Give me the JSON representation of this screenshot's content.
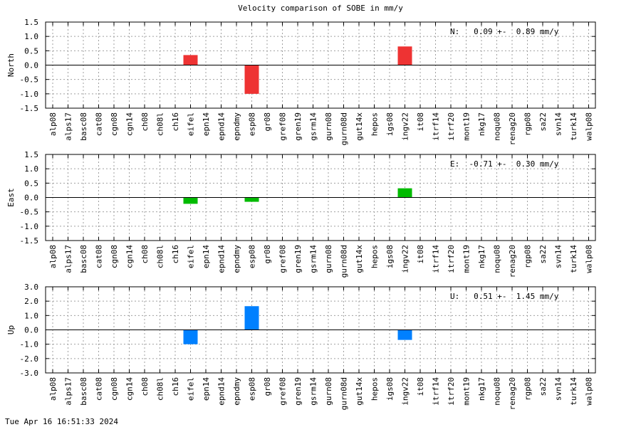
{
  "title": "Velocity comparison of SOBE in mm/y",
  "timestamp": "Tue Apr 16 16:51:33 2024",
  "categories": [
    "alp08",
    "alps17",
    "basc08",
    "cat08",
    "cgn08",
    "cgn14",
    "ch08",
    "ch08l",
    "ch16",
    "eifel",
    "epn14",
    "epnd14",
    "epndmy",
    "esp08",
    "gr08",
    "gref08",
    "gren19",
    "gsrm14",
    "gurn08",
    "gurn08d",
    "gut14x",
    "hepos",
    "igs08",
    "ingv22",
    "it08",
    "itrf14",
    "itrf20",
    "mont19",
    "nkg17",
    "noqu08",
    "renag20",
    "rgp08",
    "sa22",
    "svn14",
    "turk14",
    "walp08"
  ],
  "chart_data": [
    {
      "type": "bar",
      "ylabel": "North",
      "color": "#ee3333",
      "ylim": [
        -1.5,
        1.5
      ],
      "yticks": [
        "1.5",
        "1.0",
        "0.5",
        "0.0",
        "-0.5",
        "-1.0",
        "-1.5"
      ],
      "ytick_values": [
        1.5,
        1.0,
        0.5,
        0.0,
        -0.5,
        -1.0,
        -1.5
      ],
      "grid": true,
      "annotation": "N:   0.09 +-  0.89 mm/y",
      "values": [
        0,
        0,
        0,
        0,
        0,
        0,
        0,
        0,
        0,
        0.35,
        0,
        0,
        0,
        -1.0,
        0,
        0,
        0,
        0,
        0,
        0,
        0,
        0,
        0,
        0.65,
        0,
        0,
        0,
        0,
        0,
        0,
        0,
        0,
        0,
        0,
        0,
        0
      ]
    },
    {
      "type": "bar",
      "ylabel": "East",
      "color": "#00bb00",
      "ylim": [
        -1.5,
        1.5
      ],
      "yticks": [
        "1.5",
        "1.0",
        "0.5",
        "0.0",
        "-0.5",
        "-1.0",
        "-1.5"
      ],
      "ytick_values": [
        1.5,
        1.0,
        0.5,
        0.0,
        -0.5,
        -1.0,
        -1.5
      ],
      "grid": true,
      "annotation": "E:  -0.71 +-  0.30 mm/y",
      "values": [
        0,
        0,
        0,
        0,
        0,
        0,
        0,
        0,
        0,
        -0.22,
        0,
        0,
        0,
        -0.15,
        0,
        0,
        0,
        0,
        0,
        0,
        0,
        0,
        0,
        0.32,
        0,
        0,
        0,
        0,
        0,
        0,
        0,
        0,
        0,
        0,
        0,
        0
      ]
    },
    {
      "type": "bar",
      "ylabel": "Up",
      "color": "#0080ff",
      "ylim": [
        -3.0,
        3.0
      ],
      "yticks": [
        "3.0",
        "2.0",
        "1.0",
        "0.0",
        "-1.0",
        "-2.0",
        "-3.0"
      ],
      "ytick_values": [
        3.0,
        2.0,
        1.0,
        0.0,
        -1.0,
        -2.0,
        -3.0
      ],
      "grid": true,
      "annotation": "U:   0.51 +-  1.45 mm/y",
      "values": [
        0,
        0,
        0,
        0,
        0,
        0,
        0,
        0,
        0,
        -1.0,
        0,
        0,
        0,
        1.65,
        0,
        0,
        0,
        0,
        0,
        0,
        0,
        0,
        0,
        -0.7,
        0,
        0,
        0,
        0,
        0,
        0,
        0,
        0,
        0,
        0,
        0,
        0
      ]
    }
  ]
}
